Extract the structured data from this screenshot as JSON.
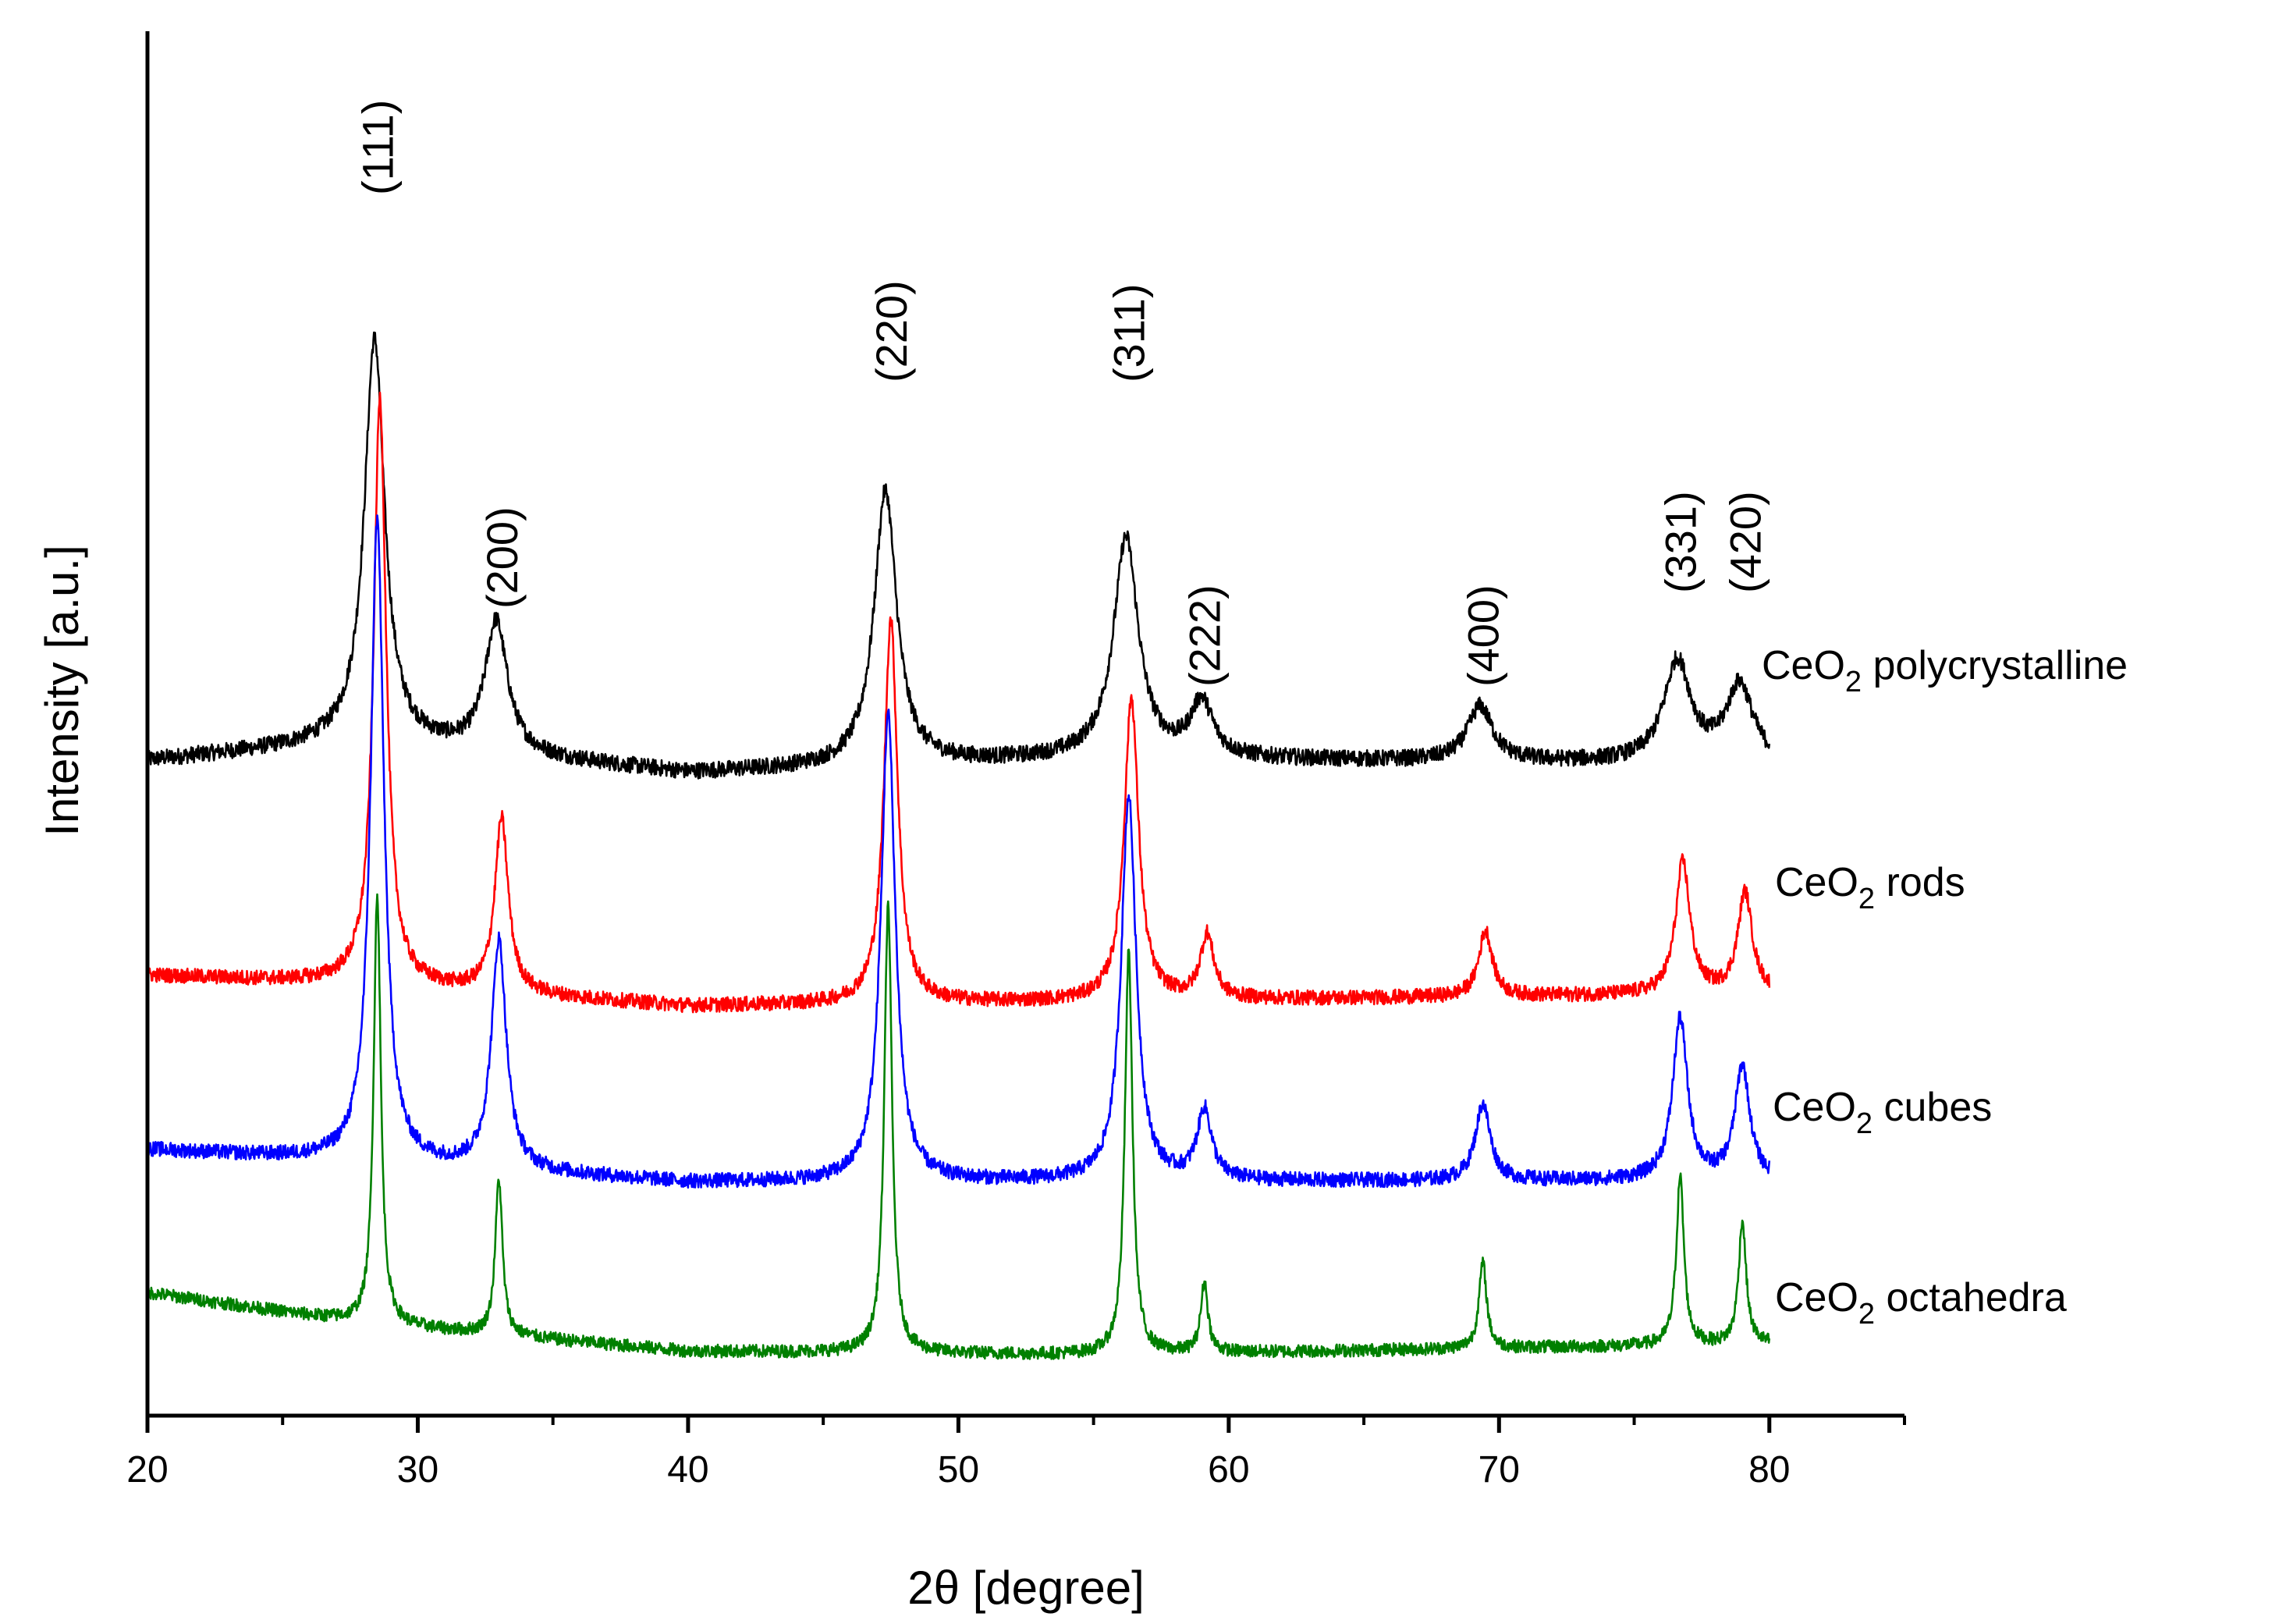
{
  "chart_data": {
    "type": "line",
    "title": "",
    "xlabel": "2θ [degree]",
    "ylabel": "Intensity [a.u.]",
    "xlim": [
      20,
      85
    ],
    "x_ticks": [
      20,
      30,
      40,
      50,
      60,
      70,
      80
    ],
    "x_tick_labels": [
      "20",
      "30",
      "40",
      "50",
      "60",
      "70",
      "80"
    ],
    "y_ticks_shown": false,
    "grid": false,
    "legend_placement": "inline labels right of each trace",
    "x_range_measured": [
      20,
      80
    ],
    "peak_labels": [
      {
        "label": "(111)",
        "x": 28.5
      },
      {
        "label": "(200)",
        "x": 33.1
      },
      {
        "label": "(220)",
        "x": 47.5
      },
      {
        "label": "(311)",
        "x": 56.3
      },
      {
        "label": "(222)",
        "x": 59.1
      },
      {
        "label": "(400)",
        "x": 69.4
      },
      {
        "label": "(331)",
        "x": 76.7
      },
      {
        "label": "(420)",
        "x": 79.1
      }
    ],
    "series": [
      {
        "name": "CeO2 polycrystalline",
        "label_main": "CeO",
        "label_sub": "2",
        "label_rest": " polycrystalline",
        "color": "#000000",
        "offset": 3.3,
        "noise": 0.045,
        "baseline": [
          [
            20,
            0.02
          ],
          [
            28,
            0.12
          ],
          [
            40,
            -0.05
          ],
          [
            55,
            0.03
          ],
          [
            80,
            0.0
          ]
        ],
        "peaks": [
          {
            "x": 28.4,
            "h": 2.2,
            "w": 0.45
          },
          {
            "x": 32.9,
            "h": 0.72,
            "w": 0.5
          },
          {
            "x": 47.3,
            "h": 1.5,
            "w": 0.5
          },
          {
            "x": 56.2,
            "h": 1.2,
            "w": 0.55
          },
          {
            "x": 59.0,
            "h": 0.3,
            "w": 0.5
          },
          {
            "x": 69.3,
            "h": 0.3,
            "w": 0.55
          },
          {
            "x": 76.6,
            "h": 0.55,
            "w": 0.6
          },
          {
            "x": 78.9,
            "h": 0.42,
            "w": 0.6
          }
        ]
      },
      {
        "name": "CeO2 rods",
        "label_main": "CeO",
        "label_sub": "2",
        "label_rest": " rods",
        "color": "#ff0000",
        "offset": 2.05,
        "noise": 0.04,
        "baseline": [
          [
            20,
            0.1
          ],
          [
            28,
            0.05
          ],
          [
            40,
            -0.07
          ],
          [
            80,
            0.0
          ]
        ],
        "peaks": [
          {
            "x": 28.6,
            "h": 3.2,
            "w": 0.28
          },
          {
            "x": 33.1,
            "h": 0.95,
            "w": 0.3
          },
          {
            "x": 47.5,
            "h": 2.1,
            "w": 0.3
          },
          {
            "x": 56.4,
            "h": 1.65,
            "w": 0.32
          },
          {
            "x": 59.2,
            "h": 0.35,
            "w": 0.3
          },
          {
            "x": 69.5,
            "h": 0.36,
            "w": 0.3
          },
          {
            "x": 76.8,
            "h": 0.72,
            "w": 0.32
          },
          {
            "x": 79.1,
            "h": 0.55,
            "w": 0.32
          }
        ]
      },
      {
        "name": "CeO2 cubes",
        "label_main": "CeO",
        "label_sub": "2",
        "label_rest": " cubes",
        "color": "#0000ff",
        "offset": 1.05,
        "noise": 0.04,
        "baseline": [
          [
            20,
            0.15
          ],
          [
            28,
            0.08
          ],
          [
            40,
            -0.03
          ],
          [
            80,
            -0.02
          ]
        ],
        "peaks": [
          {
            "x": 28.5,
            "h": 3.5,
            "w": 0.3
          },
          {
            "x": 33.0,
            "h": 1.25,
            "w": 0.33
          },
          {
            "x": 47.4,
            "h": 2.55,
            "w": 0.32
          },
          {
            "x": 56.3,
            "h": 2.1,
            "w": 0.33
          },
          {
            "x": 59.1,
            "h": 0.38,
            "w": 0.32
          },
          {
            "x": 69.4,
            "h": 0.42,
            "w": 0.33
          },
          {
            "x": 76.7,
            "h": 0.88,
            "w": 0.33
          },
          {
            "x": 79.0,
            "h": 0.62,
            "w": 0.33
          }
        ]
      },
      {
        "name": "CeO2 octahedra",
        "label_main": "CeO",
        "label_sub": "2",
        "label_rest": " octahedra",
        "color": "#008000",
        "offset": 0.0,
        "noise": 0.035,
        "baseline": [
          [
            20,
            0.42
          ],
          [
            28,
            0.25
          ],
          [
            40,
            0.1
          ],
          [
            55,
            0.08
          ],
          [
            80,
            0.14
          ]
        ],
        "peaks": [
          {
            "x": 28.5,
            "h": 2.35,
            "w": 0.16
          },
          {
            "x": 33.0,
            "h": 0.85,
            "w": 0.16
          },
          {
            "x": 47.4,
            "h": 2.45,
            "w": 0.17
          },
          {
            "x": 56.3,
            "h": 2.2,
            "w": 0.17
          },
          {
            "x": 59.1,
            "h": 0.38,
            "w": 0.16
          },
          {
            "x": 69.4,
            "h": 0.47,
            "w": 0.17
          },
          {
            "x": 76.7,
            "h": 0.92,
            "w": 0.17
          },
          {
            "x": 79.0,
            "h": 0.67,
            "w": 0.17
          }
        ]
      }
    ]
  }
}
